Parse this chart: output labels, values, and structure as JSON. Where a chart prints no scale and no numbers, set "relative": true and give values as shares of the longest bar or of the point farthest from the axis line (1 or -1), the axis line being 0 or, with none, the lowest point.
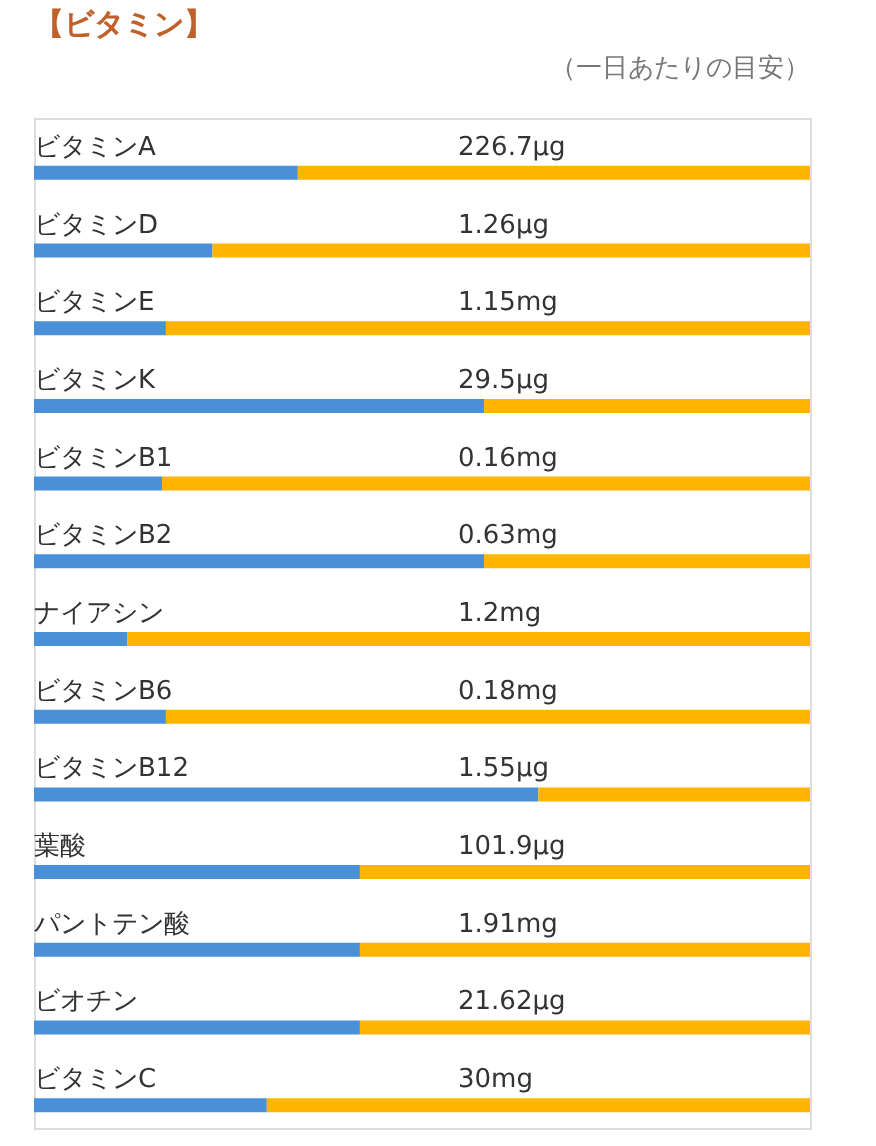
{
  "chart_data": {
    "type": "bar",
    "orientation": "horizontal",
    "stacked": true,
    "relative": true,
    "title": "【ビタミン】",
    "subtitle": "（一日あたりの目安）",
    "categories": [
      "ビタミンA",
      "ビタミンD",
      "ビタミンE",
      "ビタミンK",
      "ビタミンB1",
      "ビタミンB2",
      "ナイアシン",
      "ビタミンB6",
      "ビタミンB12",
      "葉酸",
      "パントテン酸",
      "ビオチン",
      "ビタミンC"
    ],
    "series": [
      {
        "color": "#4a90d9",
        "values": [
          0.34,
          0.23,
          0.17,
          0.58,
          0.165,
          0.58,
          0.12,
          0.17,
          0.65,
          0.42,
          0.42,
          0.42,
          0.3
        ]
      },
      {
        "color": "#ffb400",
        "values": [
          0.66,
          0.77,
          0.83,
          0.42,
          0.835,
          0.42,
          0.88,
          0.83,
          0.35,
          0.58,
          0.58,
          0.58,
          0.7
        ]
      }
    ],
    "annotations": [
      "226.7μg",
      "1.26μg",
      "1.15mg",
      "29.5μg",
      "0.16mg",
      "0.63mg",
      "1.2mg",
      "0.18mg",
      "1.55μg",
      "101.9μg",
      "1.91mg",
      "21.62μg",
      "30mg"
    ]
  }
}
